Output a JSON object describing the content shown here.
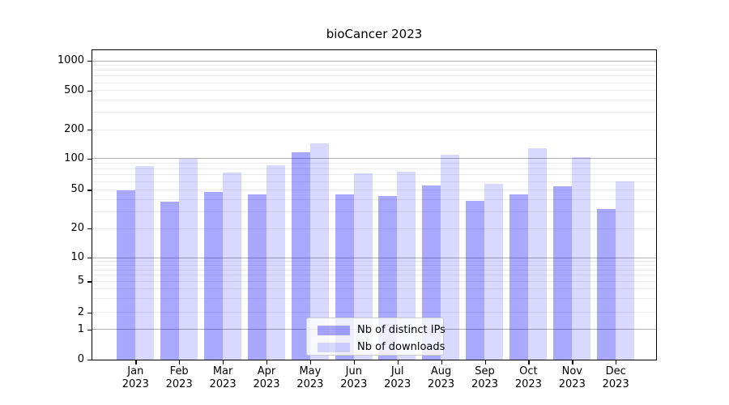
{
  "chart_data": {
    "type": "bar",
    "title": "bioCancer 2023",
    "categories": [
      "Jan 2023",
      "Feb 2023",
      "Mar 2023",
      "Apr 2023",
      "May 2023",
      "Jun 2023",
      "Jul 2023",
      "Aug 2023",
      "Sep 2023",
      "Oct 2023",
      "Nov 2023",
      "Dec 2023"
    ],
    "series": [
      {
        "name": "Nb of distinct IPs",
        "color": "rgba(0,0,255,0.34)",
        "values": [
          50,
          38,
          48,
          45,
          117,
          45,
          43,
          55,
          39,
          45,
          54,
          32
        ]
      },
      {
        "name": "Nb of downloads",
        "color": "rgba(0,0,255,0.15)",
        "values": [
          85,
          100,
          74,
          87,
          145,
          72,
          75,
          110,
          57,
          130,
          104,
          60
        ]
      }
    ],
    "xlabel": "",
    "ylabel": "",
    "yscale": "symlog",
    "yticks": [
      0,
      1,
      2,
      5,
      10,
      20,
      50,
      100,
      200,
      500,
      1000
    ],
    "ylim": [
      0,
      1200
    ],
    "grid": "horizontal major and log-minor gridlines",
    "legend_position": "lower center",
    "colors": {
      "major_grid": "#b0b0b0",
      "minor_grid": "#ebebeb",
      "axis": "#000000",
      "bar_ips_on_white": "#a8a8ff",
      "bar_downloads_on_white": "#d9d9ff"
    }
  }
}
